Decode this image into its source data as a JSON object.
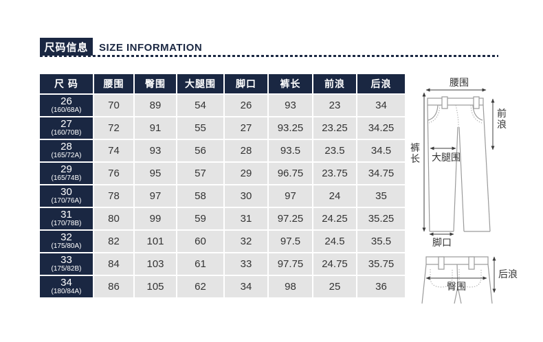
{
  "header": {
    "title_cn": "尺码信息",
    "title_en": "SIZE INFORMATION",
    "accent_color": "#1a2742"
  },
  "size_table": {
    "header_bg": "#1a2742",
    "cell_bg": "#e4e4e4",
    "columns": [
      "尺 码",
      "腰围",
      "臀围",
      "大腿围",
      "脚口",
      "裤长",
      "前浪",
      "后浪"
    ],
    "rows": [
      {
        "size": "26",
        "spec": "(160/68A)",
        "values": [
          "70",
          "89",
          "54",
          "26",
          "93",
          "23",
          "34"
        ]
      },
      {
        "size": "27",
        "spec": "(160/70B)",
        "values": [
          "72",
          "91",
          "55",
          "27",
          "93.25",
          "23.25",
          "34.25"
        ]
      },
      {
        "size": "28",
        "spec": "(165/72A)",
        "values": [
          "74",
          "93",
          "56",
          "28",
          "93.5",
          "23.5",
          "34.5"
        ]
      },
      {
        "size": "29",
        "spec": "(165/74B)",
        "values": [
          "76",
          "95",
          "57",
          "29",
          "96.75",
          "23.75",
          "34.75"
        ]
      },
      {
        "size": "30",
        "spec": "(170/76A)",
        "values": [
          "78",
          "97",
          "58",
          "30",
          "97",
          "24",
          "35"
        ]
      },
      {
        "size": "31",
        "spec": "(170/78B)",
        "values": [
          "80",
          "99",
          "59",
          "31",
          "97.25",
          "24.25",
          "35.25"
        ]
      },
      {
        "size": "32",
        "spec": "(175/80A)",
        "values": [
          "82",
          "101",
          "60",
          "32",
          "97.5",
          "24.5",
          "35.5"
        ]
      },
      {
        "size": "33",
        "spec": "(175/82B)",
        "values": [
          "84",
          "103",
          "61",
          "33",
          "97.75",
          "24.75",
          "35.75"
        ]
      },
      {
        "size": "34",
        "spec": "(180/84A)",
        "values": [
          "86",
          "105",
          "62",
          "34",
          "98",
          "25",
          "36"
        ]
      }
    ]
  },
  "diagram": {
    "front": {
      "waist_label": "腰围",
      "front_rise_label": "前浪",
      "length_label": "裤长",
      "thigh_label": "大腿围",
      "hem_label": "脚口"
    },
    "back": {
      "hip_label": "臀围",
      "back_rise_label": "后浪"
    },
    "outline_color": "#9a9a9a",
    "arrow_color": "#3c3c3c"
  }
}
